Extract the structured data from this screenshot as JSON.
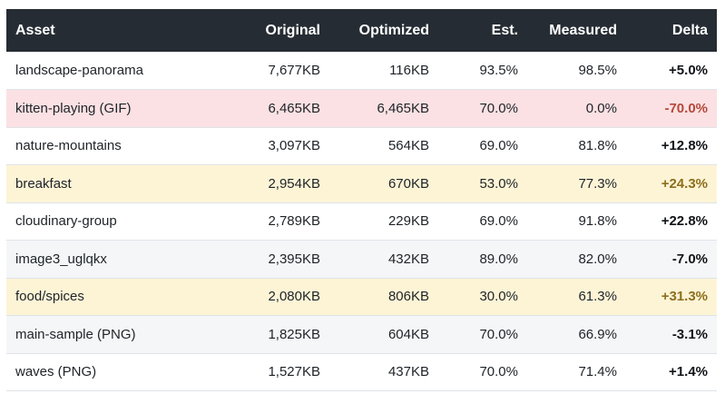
{
  "columns": {
    "asset": "Asset",
    "original": "Original",
    "optimized": "Optimized",
    "est": "Est.",
    "measured": "Measured",
    "delta": "Delta"
  },
  "rows": [
    {
      "asset": "landscape-panorama",
      "original": "7,677KB",
      "optimized": "116KB",
      "est": "93.5%",
      "measured": "98.5%",
      "delta": "+5.0%"
    },
    {
      "asset": "kitten-playing (GIF)",
      "original": "6,465KB",
      "optimized": "6,465KB",
      "est": "70.0%",
      "measured": "0.0%",
      "delta": "-70.0%"
    },
    {
      "asset": "nature-mountains",
      "original": "3,097KB",
      "optimized": "564KB",
      "est": "69.0%",
      "measured": "81.8%",
      "delta": "+12.8%"
    },
    {
      "asset": "breakfast",
      "original": "2,954KB",
      "optimized": "670KB",
      "est": "53.0%",
      "measured": "77.3%",
      "delta": "+24.3%"
    },
    {
      "asset": "cloudinary-group",
      "original": "2,789KB",
      "optimized": "229KB",
      "est": "69.0%",
      "measured": "91.8%",
      "delta": "+22.8%"
    },
    {
      "asset": "image3_uglqkx",
      "original": "2,395KB",
      "optimized": "432KB",
      "est": "89.0%",
      "measured": "82.0%",
      "delta": "-7.0%"
    },
    {
      "asset": "food/spices",
      "original": "2,080KB",
      "optimized": "806KB",
      "est": "30.0%",
      "measured": "61.3%",
      "delta": "+31.3%"
    },
    {
      "asset": "main-sample (PNG)",
      "original": "1,825KB",
      "optimized": "604KB",
      "est": "70.0%",
      "measured": "66.9%",
      "delta": "-3.1%"
    },
    {
      "asset": "waves (PNG)",
      "original": "1,527KB",
      "optimized": "437KB",
      "est": "70.0%",
      "measured": "71.4%",
      "delta": "+1.4%"
    }
  ],
  "colors": {
    "header_bg": "#262c33",
    "row_red": "#fbe1e3",
    "row_yellow": "#fdf4d6",
    "row_gray": "#f5f6f8",
    "delta_bad": "#b5483b",
    "delta_warn": "#8d6e1c"
  }
}
